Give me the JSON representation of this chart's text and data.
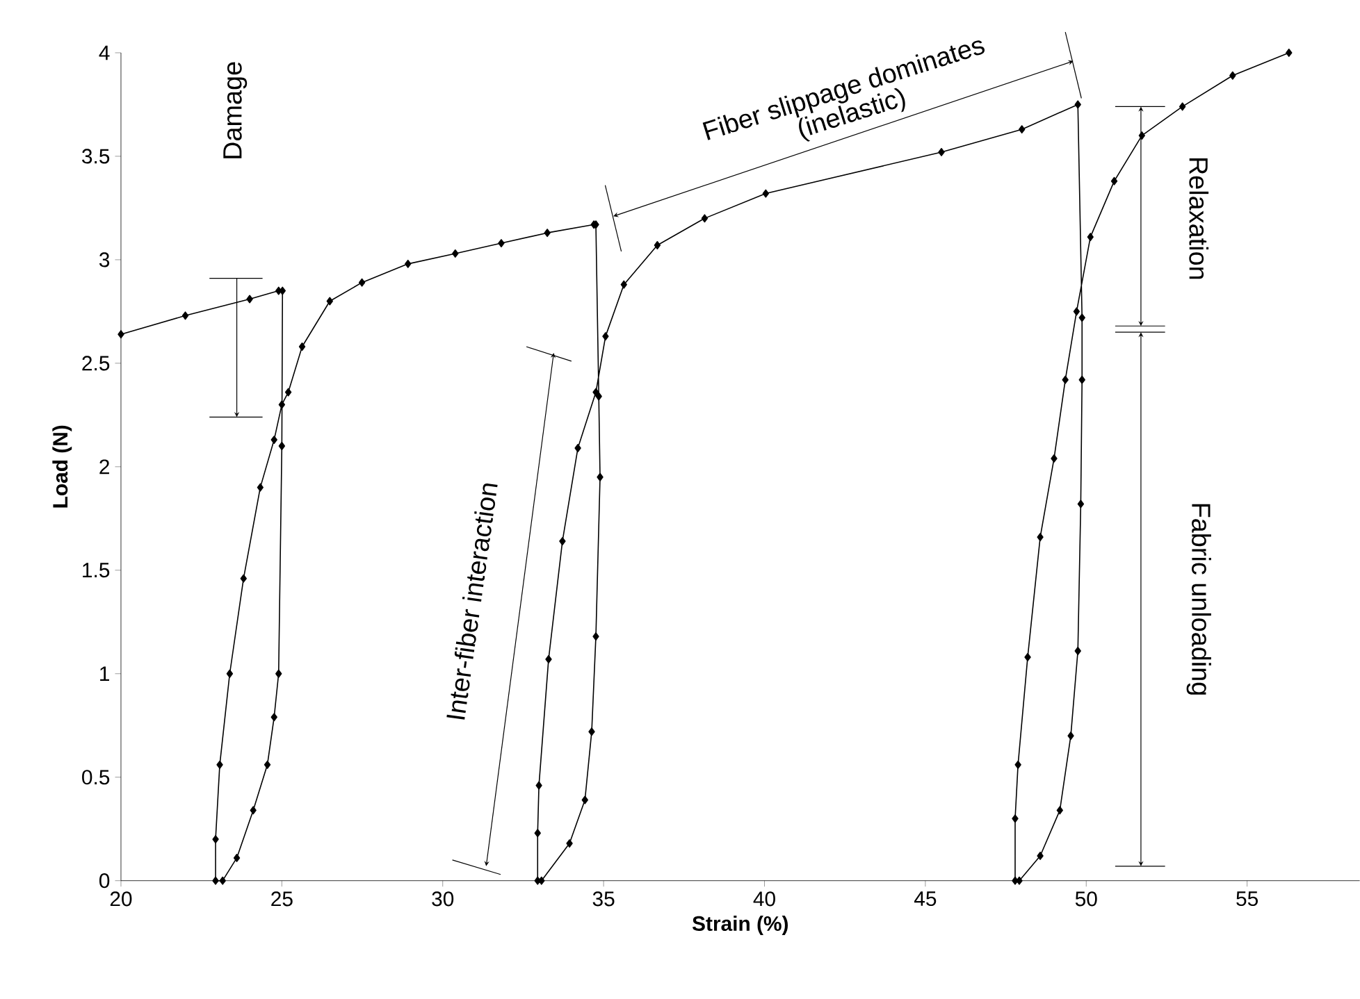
{
  "chart_data": {
    "type": "line",
    "xlabel": "**Strain (%)**",
    "ylabel": "**Load (N)**",
    "xlim": [
      20,
      58.5
    ],
    "ylim": [
      0,
      4
    ],
    "xticks": [
      20,
      25,
      30,
      35,
      40,
      45,
      50,
      55
    ],
    "yticks": [
      0,
      0.5,
      1,
      1.5,
      2,
      2.5,
      3,
      3.5,
      4
    ],
    "marker": "diamond",
    "line_style": "solid",
    "annotations": [
      "Damage",
      "Inter-fiber interaction",
      "Fiber slippage dominates (inelastic)",
      "Relaxation",
      "Fabric unloading"
    ],
    "series": [
      {
        "color": "#000000",
        "x": [
          20,
          22,
          24,
          24.9,
          25.02,
          25.0,
          24.9,
          24.76,
          24.55,
          24.11,
          23.6,
          23.16,
          22.94,
          22.94,
          23.07,
          23.38,
          23.81,
          24.33,
          24.76,
          25.0,
          25.2,
          25.63,
          26.49,
          27.49,
          28.92,
          30.39,
          31.82,
          33.25,
          34.7,
          34.76,
          34.85,
          34.89,
          34.76,
          34.63,
          34.42,
          33.94,
          33.07,
          32.95,
          32.95,
          32.99,
          33.29,
          33.72,
          34.2,
          34.76,
          35.06,
          35.63,
          36.67,
          38.14,
          40.04,
          45.5,
          48,
          49.74,
          49.87,
          49.87,
          49.83,
          49.74,
          49.52,
          49.18,
          48.57,
          47.92,
          47.79,
          47.79,
          47.88,
          48.18,
          48.57,
          49.0,
          49.35,
          49.7,
          50.13,
          50.87,
          51.73,
          52.99,
          54.55,
          56.3
        ],
        "values": [
          2.64,
          2.73,
          2.81,
          2.85,
          2.85,
          2.1,
          1.0,
          0.79,
          0.56,
          0.34,
          0.11,
          0.0,
          0.0,
          0.2,
          0.56,
          1.0,
          1.46,
          1.9,
          2.13,
          2.3,
          2.36,
          2.58,
          2.8,
          2.89,
          2.98,
          3.03,
          3.08,
          3.13,
          3.17,
          3.17,
          2.34,
          1.95,
          1.18,
          0.72,
          0.39,
          0.18,
          0.0,
          0.0,
          0.23,
          0.46,
          1.07,
          1.64,
          2.09,
          2.36,
          2.63,
          2.88,
          3.07,
          3.2,
          3.32,
          3.52,
          3.63,
          3.75,
          2.72,
          2.42,
          1.82,
          1.11,
          0.7,
          0.34,
          0.12,
          0.0,
          0.0,
          0.3,
          0.56,
          1.08,
          1.66,
          2.04,
          2.42,
          2.75,
          3.11,
          3.38,
          3.6,
          3.74,
          3.89,
          4.0
        ]
      }
    ]
  }
}
